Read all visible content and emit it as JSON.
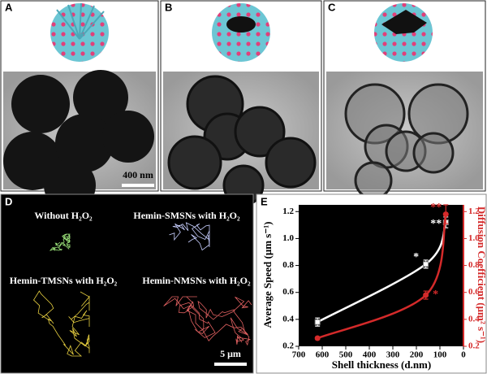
{
  "panels": {
    "a": "A",
    "b": "B",
    "c": "C",
    "d": "D",
    "e": "E"
  },
  "tem_scale_bar": "400 nm",
  "trajectory_scale_bar": "5 μm",
  "trajectories": [
    "Without H₂O₂",
    "Hemin-SMSNs with H₂O₂",
    "Hemin-TMSNs with H₂O₂",
    "Hemin-NMSNs with H₂O₂"
  ],
  "chart_data": {
    "type": "line",
    "xlabel": "Shell thickness (d.nm)",
    "ylabel": "Average Speed (μm s⁻¹)",
    "y2label": "Diffusion Coefficient (μm² s⁻¹)",
    "x": [
      620,
      160,
      75
    ],
    "xlim": [
      700,
      0
    ],
    "xticks": [
      700,
      600,
      500,
      400,
      300,
      200,
      100,
      0
    ],
    "ylim": [
      0.2,
      1.25
    ],
    "yticks": [
      0.2,
      0.4,
      0.6,
      0.8,
      {
        "value": 1,
        "label": "1.0"
      },
      1.2
    ],
    "y2lim": [
      0.2,
      1.25
    ],
    "y2ticks": [
      0.2,
      0.4,
      0.6,
      0.8,
      {
        "value": 1,
        "label": "1.0"
      },
      1.2
    ],
    "series": [
      {
        "name": "Average Speed",
        "color": "#ffffff",
        "values": [
          0.38,
          0.81,
          1.12
        ],
        "errors": [
          0.03,
          0.03,
          0.04
        ],
        "value_labels": [
          null,
          "*",
          "**"
        ]
      },
      {
        "name": "Diffusion Coefficient",
        "color": "#d42a2a",
        "axis": "y2",
        "values": [
          0.26,
          0.58,
          1.18
        ],
        "errors": [
          0.01,
          0.03,
          0.07
        ],
        "value_labels": [
          null,
          "*",
          "**"
        ]
      }
    ]
  }
}
